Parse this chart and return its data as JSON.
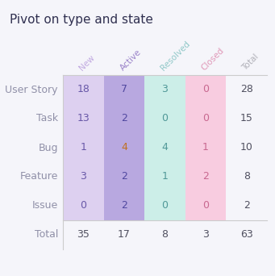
{
  "title": "Pivot on type and state",
  "col_headers": [
    "New",
    "Active",
    "Resolved",
    "Closed",
    "Total"
  ],
  "row_headers": [
    "User Story",
    "Task",
    "Bug",
    "Feature",
    "Issue",
    "Total"
  ],
  "values": [
    [
      18,
      7,
      3,
      0,
      28
    ],
    [
      13,
      2,
      0,
      0,
      15
    ],
    [
      1,
      4,
      4,
      1,
      10
    ],
    [
      3,
      2,
      1,
      2,
      8
    ],
    [
      0,
      2,
      0,
      0,
      2
    ],
    [
      35,
      17,
      8,
      3,
      63
    ]
  ],
  "col_bg_colors": [
    "#ddd0f0",
    "#b8a8e0",
    "#cceee8",
    "#f8cce0",
    null
  ],
  "col_header_colors": [
    "#c0a8e0",
    "#9880c8",
    "#90c8c8",
    "#e098b8",
    "#b0b0b8"
  ],
  "cell_text_colors": [
    [
      "#6858a8",
      "#5048a0",
      "#509898",
      "#c86890",
      "#606070"
    ],
    [
      "#6858a8",
      "#5048a0",
      "#509898",
      "#c86890",
      "#606070"
    ],
    [
      "#6858a8",
      "#c07020",
      "#509898",
      "#c86890",
      "#606070"
    ],
    [
      "#6858a8",
      "#5048a0",
      "#509898",
      "#c86890",
      "#606070"
    ],
    [
      "#6858a8",
      "#5048a0",
      "#509898",
      "#c86890",
      "#606070"
    ],
    [
      "#606070",
      "#606070",
      "#606070",
      "#606070",
      "#606070"
    ]
  ],
  "total_col_color": "#505060",
  "row_header_color": "#9090a8",
  "background_color": "#f5f5fa",
  "border_color": "#cccccc",
  "title_color": "#303050",
  "title_fontsize": 11,
  "header_fontsize": 7.5,
  "cell_fontsize": 9
}
